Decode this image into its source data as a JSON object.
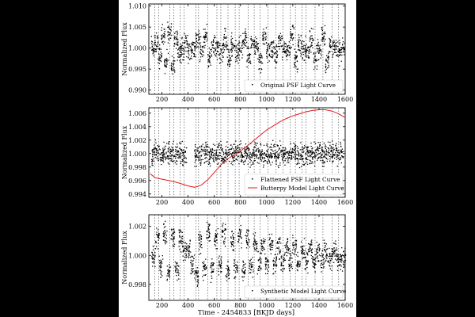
{
  "figure": {
    "xlabel": "Time - 2454833 [BKJD days]",
    "ylabel": "Normalized Flux"
  },
  "chart_data": [
    {
      "type": "scatter",
      "xlim": [
        100,
        1600
      ],
      "ylim": [
        0.989,
        1.0105
      ],
      "xticks": [
        "200",
        "400",
        "600",
        "800",
        "1000",
        "1200",
        "1400",
        "1600"
      ],
      "yticks": [
        "0.990",
        "0.995",
        "1.000",
        "1.005",
        "1.010"
      ],
      "legend_loc": "lower-right",
      "series": [
        {
          "name": "Original PSF Light Curve",
          "style": "points",
          "color": "#000000",
          "x": [
            130,
            155,
            180,
            205,
            230,
            255,
            280,
            305,
            330,
            350,
            380,
            410,
            440,
            470,
            500,
            530,
            560,
            590,
            620,
            650,
            680,
            710,
            740,
            770,
            800,
            830,
            860,
            890,
            920,
            950,
            980,
            1010,
            1040,
            1070,
            1100,
            1130,
            1160,
            1190,
            1220,
            1250,
            1280,
            1310,
            1340,
            1370,
            1400,
            1430,
            1460,
            1490,
            1520,
            1550,
            1580
          ],
          "y": [
            1.0,
            1.002,
            0.998,
            1.003,
            0.997,
            1.004,
            0.996,
            1.002,
            0.999,
            1.0,
            1.001,
            0.999,
            1.0,
            1.002,
            1.0,
            1.003,
            0.998,
            1.001,
            1.0,
            0.999,
            1.002,
            0.998,
            1.001,
            0.999,
            1.0,
            1.002,
            0.998,
            1.001,
            1.0,
            0.997,
            1.003,
            0.999,
            1.0,
            0.998,
            1.002,
            1.0,
            0.999,
            1.003,
            0.997,
            1.001,
            1.0,
            0.999,
            1.002,
            0.998,
            1.0,
            1.003,
            0.997,
            1.001,
            1.0,
            0.999,
            1.0
          ]
        }
      ]
    },
    {
      "type": "scatter",
      "xlim": [
        100,
        1600
      ],
      "ylim": [
        0.9935,
        1.0068
      ],
      "xticks": [
        "200",
        "400",
        "600",
        "800",
        "1000",
        "1200",
        "1400",
        "1600"
      ],
      "yticks": [
        "0.994",
        "0.996",
        "0.998",
        "1.000",
        "1.002",
        "1.004",
        "1.006"
      ],
      "legend_loc": "lower-right",
      "series": [
        {
          "name": "Flattened PSF Light Curve",
          "style": "points",
          "color": "#000000",
          "x": [
            130,
            160,
            190,
            220,
            250,
            280,
            310,
            340,
            370,
            460,
            490,
            520,
            550,
            580,
            610,
            640,
            670,
            700,
            730,
            760,
            790,
            820,
            850,
            880,
            910,
            940,
            970,
            1000,
            1030,
            1060,
            1090,
            1120,
            1150,
            1180,
            1210,
            1240,
            1270,
            1300,
            1330,
            1360,
            1390,
            1420,
            1450,
            1480,
            1510,
            1540,
            1570
          ],
          "y": [
            1.0,
            1.0003,
            0.9997,
            1.0002,
            0.9998,
            1.0001,
            0.9999,
            1.0002,
            1.0,
            1.0,
            0.9998,
            1.0002,
            1.0,
            0.9999,
            1.0001,
            1.0,
            0.9998,
            1.0002,
            1.0,
            0.9999,
            1.0001,
            1.0,
            1.0002,
            0.9998,
            1.0,
            1.0001,
            0.9999,
            1.0,
            1.0002,
            0.9998,
            1.0,
            1.0001,
            0.9999,
            1.0,
            1.0002,
            0.9998,
            1.0,
            1.0001,
            0.9999,
            1.0,
            1.0002,
            0.9998,
            1.0,
            1.0001,
            0.9999,
            1.0,
            1.0
          ]
        },
        {
          "name": "Butterpy Model Light Curve",
          "style": "line",
          "color": "#e41a1c",
          "x": [
            110,
            150,
            200,
            250,
            300,
            350,
            400,
            450,
            500,
            550,
            600,
            650,
            700,
            750,
            800,
            850,
            900,
            950,
            1000,
            1050,
            1100,
            1150,
            1200,
            1250,
            1300,
            1350,
            1400,
            1450,
            1500,
            1550,
            1595
          ],
          "y": [
            0.997,
            0.9964,
            0.9962,
            0.996,
            0.9958,
            0.9955,
            0.9952,
            0.995,
            0.9953,
            0.9961,
            0.9972,
            0.9983,
            0.9992,
            0.9998,
            1.0004,
            1.0011,
            1.0019,
            1.0027,
            1.0035,
            1.0041,
            1.0047,
            1.0052,
            1.0056,
            1.0059,
            1.0062,
            1.0064,
            1.0065,
            1.0065,
            1.0063,
            1.0059,
            1.0054
          ]
        }
      ]
    },
    {
      "type": "scatter",
      "xlim": [
        100,
        1600
      ],
      "ylim": [
        0.9969,
        1.0028
      ],
      "xticks": [
        "200",
        "400",
        "600",
        "800",
        "1000",
        "1200",
        "1400",
        "1600"
      ],
      "yticks": [
        "0.998",
        "1.000",
        "1.002"
      ],
      "legend_loc": "lower-right",
      "series": [
        {
          "name": "Synthetic Model Light Curve",
          "style": "points",
          "color": "#000000",
          "x": [
            130,
            160,
            190,
            220,
            250,
            280,
            310,
            340,
            370,
            400,
            430,
            460,
            490,
            520,
            550,
            580,
            610,
            640,
            670,
            700,
            730,
            760,
            790,
            820,
            850,
            880,
            910,
            940,
            970,
            1000,
            1030,
            1060,
            1090,
            1120,
            1150,
            1180,
            1210,
            1240,
            1270,
            1300,
            1330,
            1360,
            1390,
            1420,
            1450,
            1480,
            1510,
            1540,
            1570,
            1600
          ],
          "y": [
            1.0,
            1.0012,
            0.9992,
            1.0015,
            0.999,
            1.0013,
            0.9991,
            1.0011,
            1.0003,
            1.0005,
            0.9995,
            0.9987,
            1.001,
            0.9992,
            1.0016,
            0.999,
            1.0012,
            0.9994,
            1.0015,
            0.9989,
            1.0011,
            0.9993,
            1.0014,
            0.999,
            1.0012,
            0.9992,
            1.0009,
            0.9995,
            1.0007,
            0.9994,
            1.0008,
            0.9995,
            1.0006,
            0.9996,
            1.0005,
            0.9996,
            1.0006,
            0.9995,
            1.0004,
            0.9997,
            1.0005,
            0.9996,
            1.0004,
            0.9997,
            1.0003,
            0.9997,
            1.0002,
            0.9998,
            0.9998,
            0.9998
          ]
        }
      ]
    }
  ]
}
